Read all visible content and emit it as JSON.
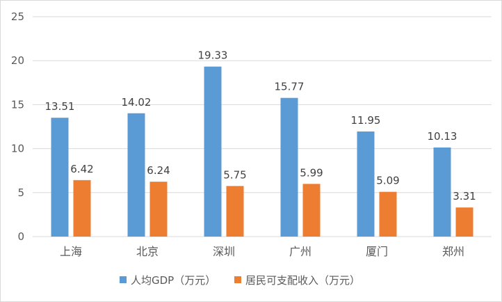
{
  "chart_data": {
    "type": "bar",
    "title": "",
    "xlabel": "",
    "ylabel": "",
    "categories": [
      "上海",
      "北京",
      "深圳",
      "广州",
      "厦门",
      "郑州"
    ],
    "series": [
      {
        "name": "人均GDP（万元）",
        "color": "#5B9BD5",
        "values": [
          13.51,
          14.02,
          19.33,
          15.77,
          11.95,
          10.13
        ]
      },
      {
        "name": "居民可支配收入（万元）",
        "color": "#ED7D31",
        "values": [
          6.42,
          6.24,
          5.75,
          5.99,
          5.09,
          3.31
        ]
      }
    ],
    "ylim": [
      0,
      25
    ],
    "yticks": [
      0,
      5,
      10,
      15,
      20,
      25
    ],
    "ytick_labels": [
      "0",
      "5",
      "10",
      "15",
      "20",
      "25"
    ],
    "grid": true,
    "gridline_color": "#d9d9d9",
    "data_labels": true,
    "legend_position": "bottom"
  }
}
